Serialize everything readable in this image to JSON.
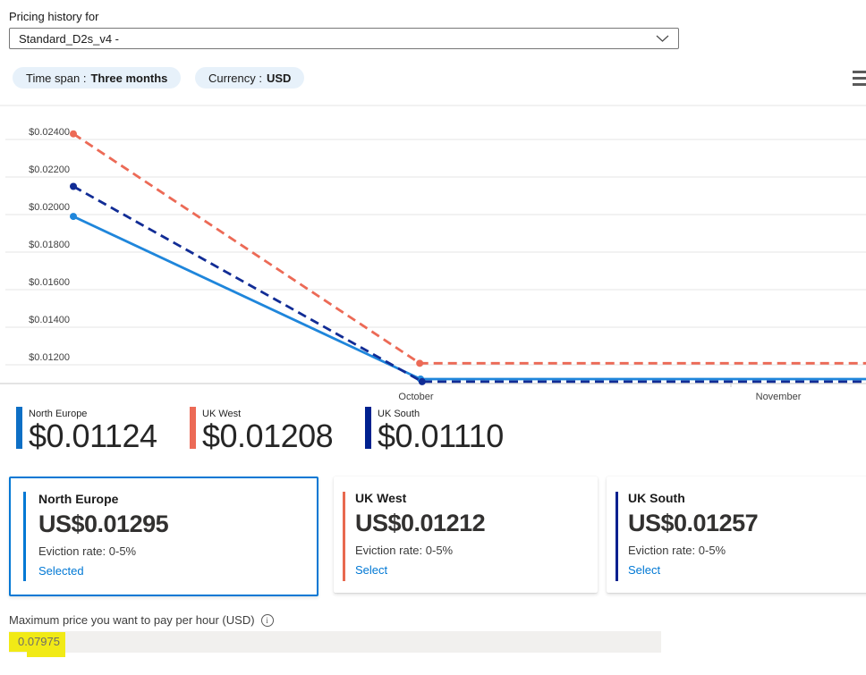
{
  "header": {
    "label": "Pricing history for",
    "vm_size": "Standard_D2s_v4 -"
  },
  "filters": {
    "time_span": {
      "label": "Time span :",
      "value": "Three months"
    },
    "currency": {
      "label": "Currency :",
      "value": "USD"
    }
  },
  "icons": {
    "dropdown": "chevron-down",
    "chart_menu": "hamburger",
    "max_price_info": "info-circle"
  },
  "chart_data": {
    "type": "line",
    "currency": "USD",
    "grid": "horizontal",
    "y_axis": {
      "min": 0.011,
      "max": 0.0245,
      "ticks": [
        {
          "value": 0.024,
          "label": "$0.02400"
        },
        {
          "value": 0.022,
          "label": "$0.02200"
        },
        {
          "value": 0.02,
          "label": "$0.02000"
        },
        {
          "value": 0.018,
          "label": "$0.01800"
        },
        {
          "value": 0.016,
          "label": "$0.01600"
        },
        {
          "value": 0.014,
          "label": "$0.01400"
        },
        {
          "value": 0.012,
          "label": "$0.01200"
        }
      ]
    },
    "x_axis": {
      "type": "time",
      "labels": [
        "October",
        "November"
      ]
    },
    "series": [
      {
        "name": "North Europe",
        "color": "#1f86db",
        "style": "solid",
        "points": [
          {
            "f": 0.0,
            "v": 0.0199
          },
          {
            "f": 0.438,
            "v": 0.01124
          },
          {
            "f": 1.0,
            "v": 0.01124
          }
        ]
      },
      {
        "name": "UK West",
        "color": "#ec6a56",
        "style": "dashed",
        "points": [
          {
            "f": 0.0,
            "v": 0.0243
          },
          {
            "f": 0.437,
            "v": 0.01208
          },
          {
            "f": 1.0,
            "v": 0.01208
          }
        ]
      },
      {
        "name": "UK South",
        "color": "#112c95",
        "style": "dashed",
        "points": [
          {
            "f": 0.0,
            "v": 0.0215
          },
          {
            "f": 0.44,
            "v": 0.0111
          },
          {
            "f": 1.0,
            "v": 0.0111
          }
        ]
      }
    ]
  },
  "legend": [
    {
      "name": "North Europe",
      "value": "$0.01124",
      "color": "#0d6fc5"
    },
    {
      "name": "UK West",
      "value": "$0.01208",
      "color": "#ec6a56"
    },
    {
      "name": "UK South",
      "value": "$0.01110",
      "color": "#00218f"
    }
  ],
  "cards": [
    {
      "region": "North Europe",
      "price": "US$0.01295",
      "eviction": "Eviction rate: 0-5%",
      "action": "Selected",
      "accent": "#0078d4",
      "selected": true
    },
    {
      "region": "UK West",
      "price": "US$0.01212",
      "eviction": "Eviction rate: 0-5%",
      "action": "Select",
      "accent": "#e8694f",
      "selected": false
    },
    {
      "region": "UK South",
      "price": "US$0.01257",
      "eviction": "Eviction rate: 0-5%",
      "action": "Select",
      "accent": "#00218f",
      "selected": false
    }
  ],
  "max_price": {
    "label": "Maximum price you want to pay per hour (USD)",
    "value": "0.07975",
    "highlight_color": "#f1ea16"
  }
}
